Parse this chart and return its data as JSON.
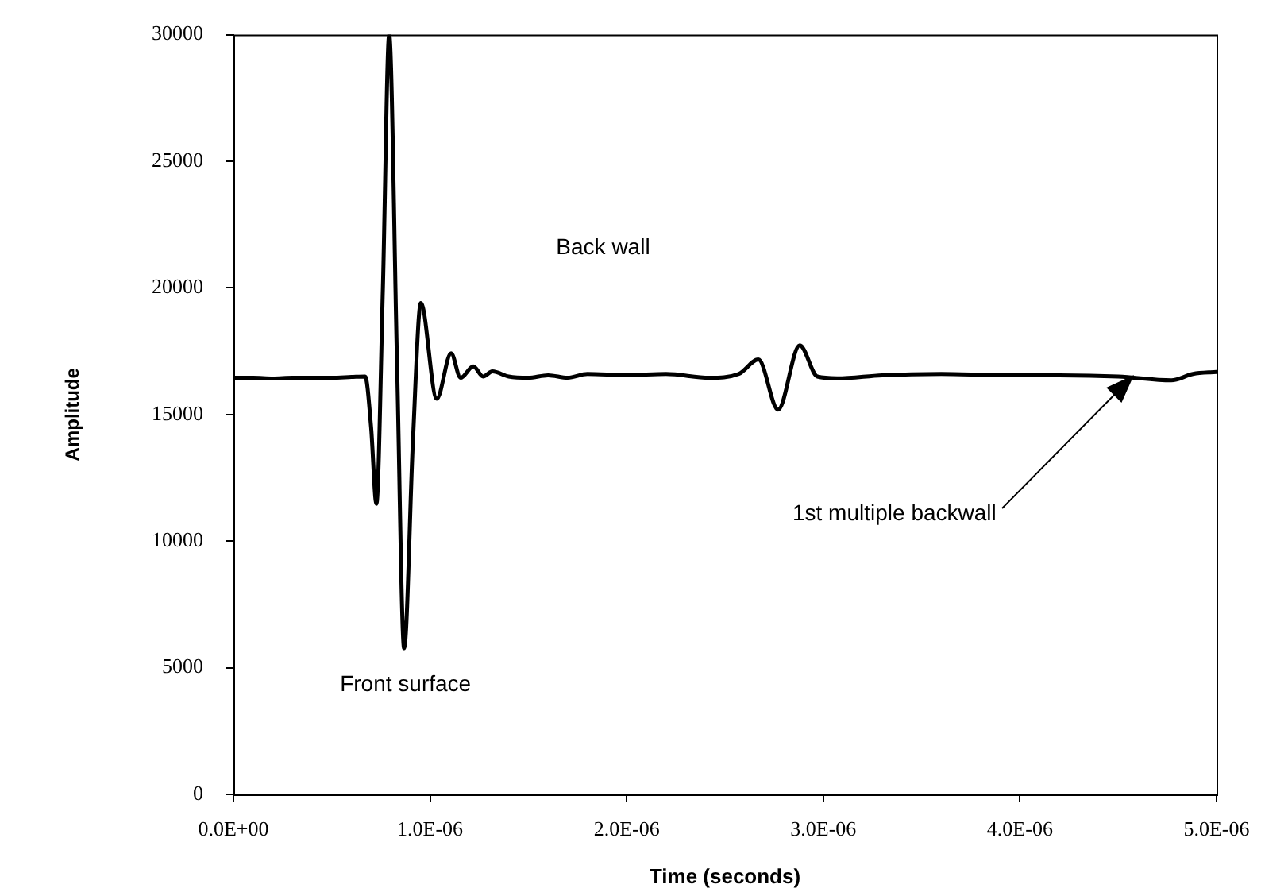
{
  "chart_data": {
    "type": "line",
    "xlabel": "Time (seconds)",
    "ylabel": "Amplitude",
    "x": [
      0,
      1e-07,
      2e-07,
      3e-07,
      4e-07,
      5e-07,
      6e-07,
      6.7e-07,
      7e-07,
      7.27e-07,
      7.6e-07,
      7.92e-07,
      8.32e-07,
      8.68e-07,
      9.13e-07,
      9.53e-07,
      1.034e-06,
      1.107e-06,
      1.155e-06,
      1.22e-06,
      1.27e-06,
      1.317e-06,
      1.4e-06,
      1.5e-06,
      1.6e-06,
      1.7e-06,
      1.8e-06,
      2e-06,
      2.2e-06,
      2.42e-06,
      2.57e-06,
      2.67e-06,
      2.77e-06,
      2.88e-06,
      2.97e-06,
      3.07e-06,
      3.3e-06,
      3.6e-06,
      3.9e-06,
      4.2e-06,
      4.5e-06,
      4.77e-06,
      4.88e-06,
      5e-06
    ],
    "series": [
      {
        "color": "#000000",
        "values": [
          16450,
          16450,
          16420,
          16450,
          16450,
          16450,
          16480,
          16500,
          14500,
          11470,
          20000,
          30000,
          17000,
          5770,
          14000,
          19400,
          15620,
          17420,
          16450,
          16900,
          16500,
          16700,
          16500,
          16450,
          16550,
          16450,
          16600,
          16550,
          16600,
          16450,
          16600,
          17170,
          15190,
          17730,
          16500,
          16430,
          16550,
          16600,
          16550,
          16550,
          16500,
          16350,
          16600,
          16680
        ]
      }
    ],
    "xlim": [
      0,
      5e-06
    ],
    "xticks": [
      {
        "value": 0,
        "label": "0.0E+00"
      },
      {
        "value": 1e-06,
        "label": "1.0E-06"
      },
      {
        "value": 2e-06,
        "label": "2.0E-06"
      },
      {
        "value": 3e-06,
        "label": "3.0E-06"
      },
      {
        "value": 4e-06,
        "label": "4.0E-06"
      },
      {
        "value": 5e-06,
        "label": "5.0E-06"
      }
    ],
    "ylim": [
      0,
      30000
    ],
    "yticks": [
      0,
      5000,
      10000,
      15000,
      20000,
      25000,
      30000
    ],
    "annotations": [
      "Back wall",
      "Front surface",
      "1st multiple backwall"
    ],
    "grid": false,
    "legend": false,
    "marker": "none",
    "line_style": "solid"
  }
}
